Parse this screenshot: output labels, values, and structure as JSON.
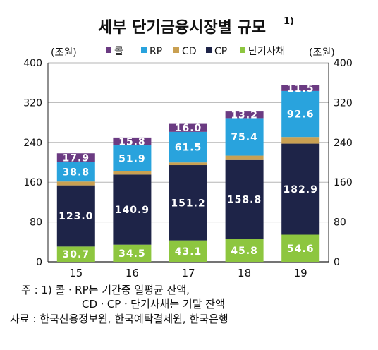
{
  "chart_data": {
    "type": "bar",
    "stacked": true,
    "title": "세부 단기금융시장별 규모",
    "title_superscript": "1)",
    "y_unit_left": "(조원)",
    "y_unit_right": "(조원)",
    "ylim": [
      0,
      400
    ],
    "yticks": [
      "0",
      "80",
      "160",
      "240",
      "320",
      "400"
    ],
    "grid": true,
    "legend_position": "top",
    "categories": [
      "15",
      "16",
      "17",
      "18",
      "19"
    ],
    "series": [
      {
        "name": "단기사채",
        "color": "#8dc63f",
        "values": [
          30.7,
          34.5,
          43.1,
          45.8,
          54.6
        ]
      },
      {
        "name": "CP",
        "color": "#1e2448",
        "values": [
          123.0,
          140.9,
          151.2,
          158.8,
          182.9
        ]
      },
      {
        "name": "CD",
        "color": "#c9a052",
        "values": [
          7.7,
          6.7,
          5.4,
          8.8,
          13.3
        ]
      },
      {
        "name": "RP",
        "color": "#29a3dd",
        "values": [
          38.8,
          51.9,
          61.5,
          75.4,
          92.6
        ]
      },
      {
        "name": "콜",
        "color": "#6b3b82",
        "values": [
          17.9,
          15.8,
          16.0,
          13.2,
          11.5
        ]
      }
    ],
    "data_labels": [
      [
        "30.7",
        "34.5",
        "43.1",
        "45.8",
        "54.6"
      ],
      [
        "123.0",
        "140.9",
        "151.2",
        "158.8",
        "182.9"
      ],
      [
        "7.7",
        "6.7",
        "5.4",
        "8.8",
        "13.3"
      ],
      [
        "38.8",
        "51.9",
        "61.5",
        "75.4",
        "92.6"
      ],
      [
        "17.9",
        "15.8",
        "16.0",
        "13.2",
        "11.5"
      ]
    ],
    "legend_order": [
      "콜",
      "RP",
      "CD",
      "CP",
      "단기사채"
    ]
  },
  "notes": {
    "line1": "주 : 1) 콜ㆍRP는 기간중 일평균 잔액,",
    "line2": "CDㆍCPㆍ단기사채는 기말 잔액",
    "line3": "자료 : 한국신용정보원, 한국예탁결제원, 한국은행"
  }
}
